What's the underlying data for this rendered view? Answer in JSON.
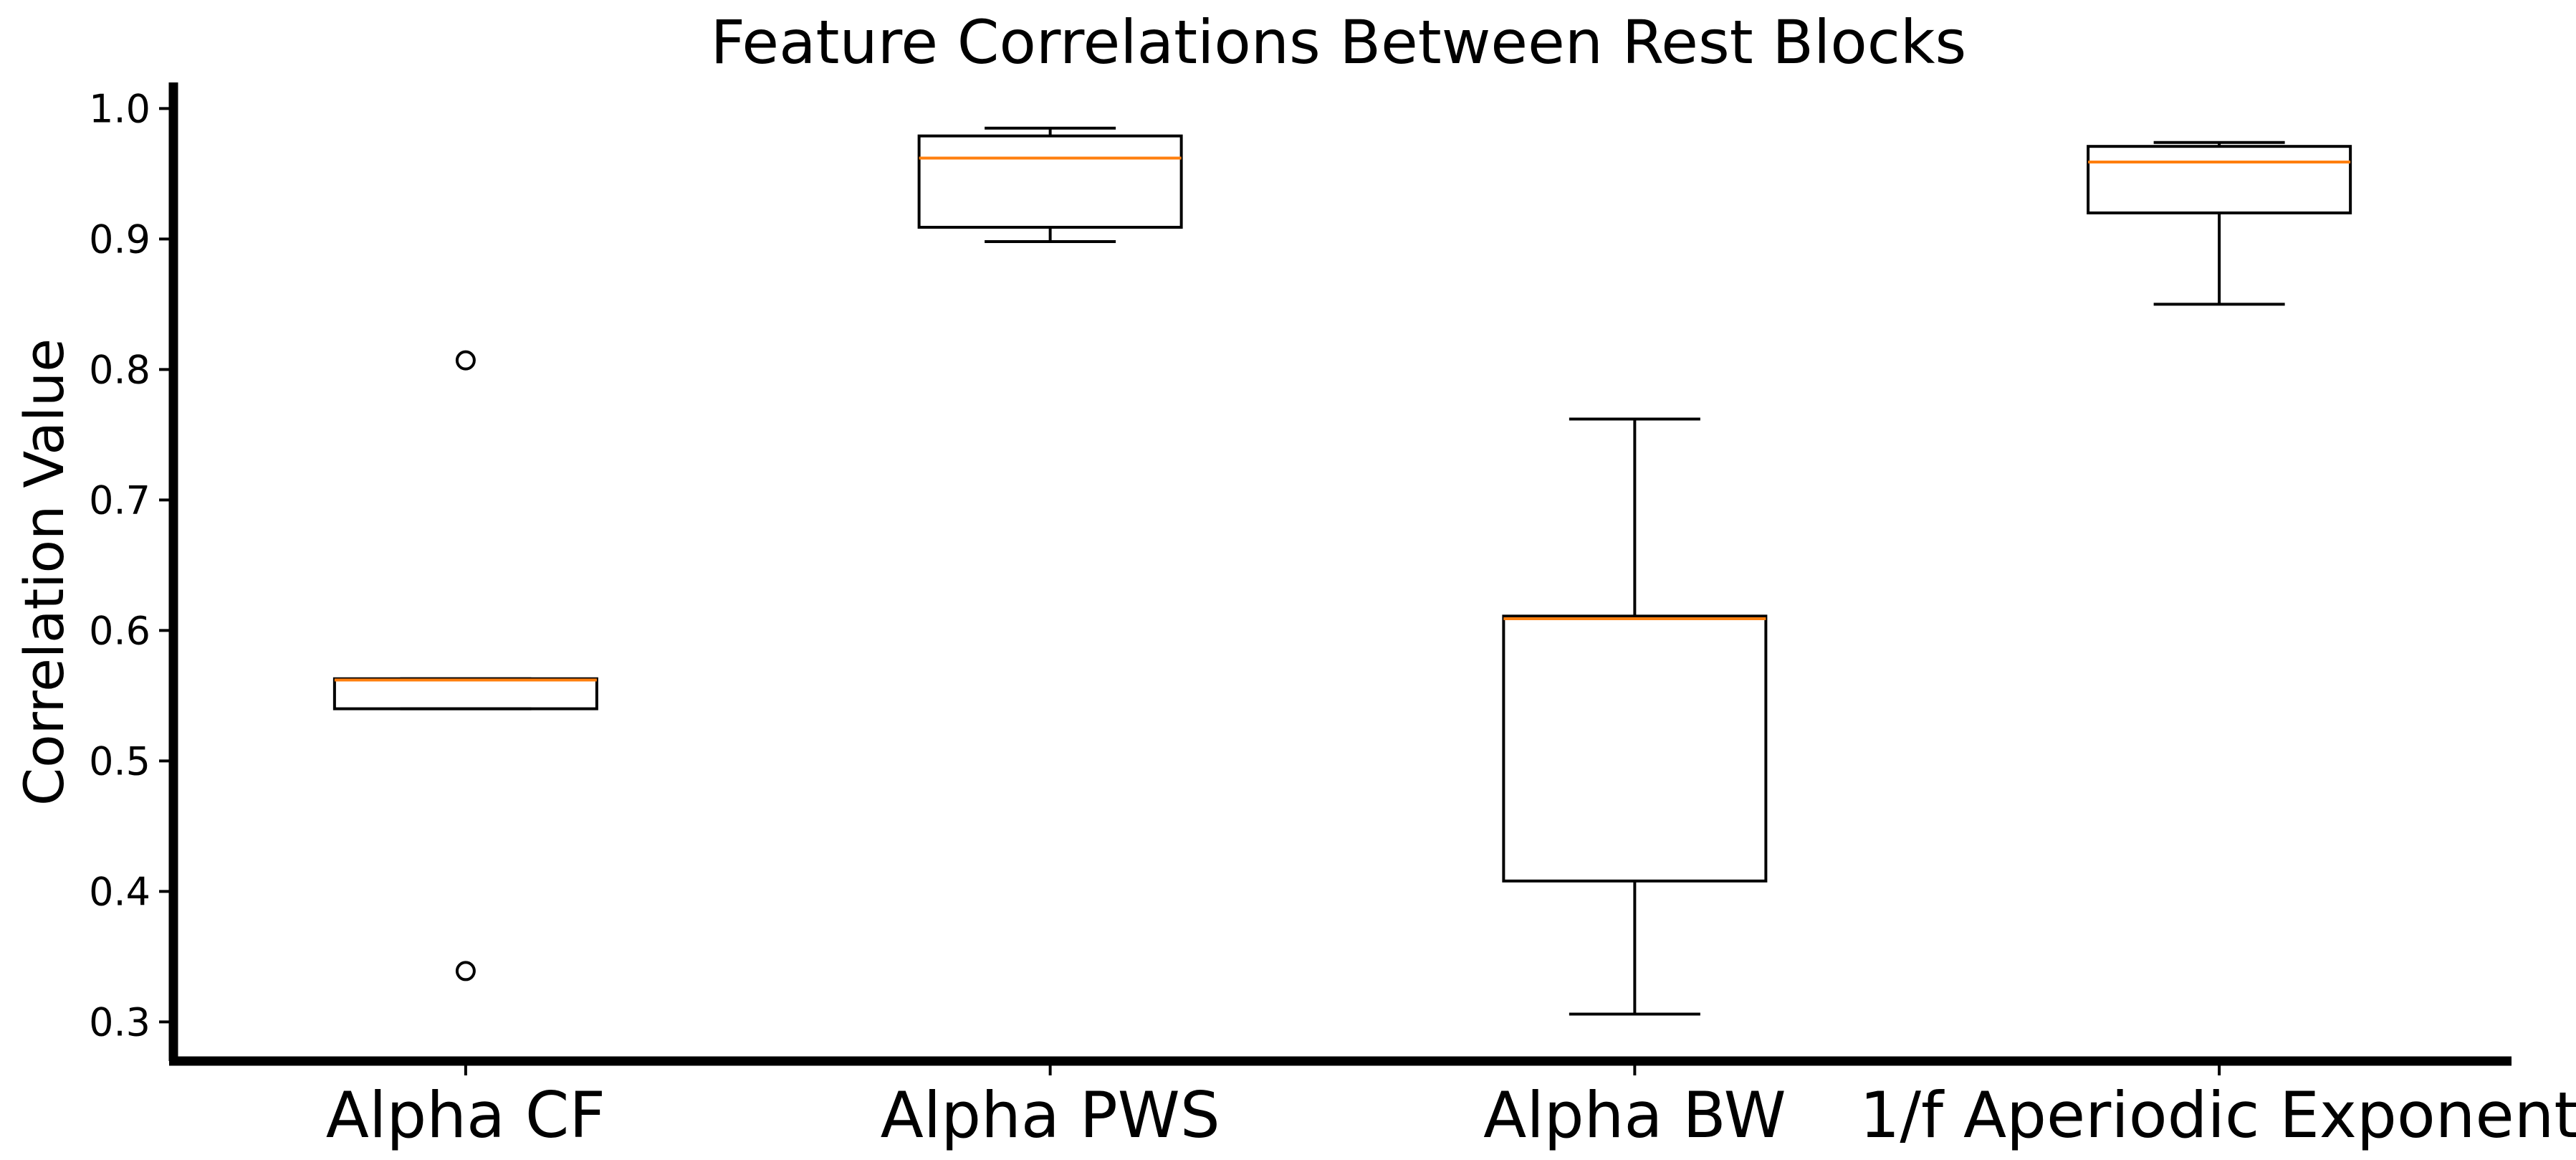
{
  "chart_data": {
    "type": "box",
    "title": "Feature Correlations Between Rest Blocks",
    "xlabel": "",
    "ylabel": "Correlation Value",
    "ylim": [
      0.27,
      1.02
    ],
    "yticks": [
      "0.3",
      "0.4",
      "0.5",
      "0.6",
      "0.7",
      "0.8",
      "0.9",
      "1.0"
    ],
    "grid": false,
    "categories": [
      "Alpha CF",
      "Alpha PWS",
      "Alpha BW",
      "1/f Aperiodic Exponent"
    ],
    "boxes": [
      {
        "category": "Alpha CF",
        "whisker_low": 0.54,
        "q1": 0.54,
        "median": 0.562,
        "q3": 0.563,
        "whisker_high": 0.563,
        "outliers": [
          0.807,
          0.339
        ]
      },
      {
        "category": "Alpha PWS",
        "whisker_low": 0.898,
        "q1": 0.909,
        "median": 0.962,
        "q3": 0.979,
        "whisker_high": 0.985,
        "outliers": []
      },
      {
        "category": "Alpha BW",
        "whisker_low": 0.306,
        "q1": 0.408,
        "median": 0.609,
        "q3": 0.611,
        "whisker_high": 0.762,
        "outliers": []
      },
      {
        "category": "1/f Aperiodic Exponent",
        "whisker_low": 0.85,
        "q1": 0.92,
        "median": 0.959,
        "q3": 0.971,
        "whisker_high": 0.974,
        "outliers": []
      }
    ],
    "colors": {
      "box": "#000000",
      "median": "#ff7f0e",
      "axis": "#000000"
    }
  }
}
